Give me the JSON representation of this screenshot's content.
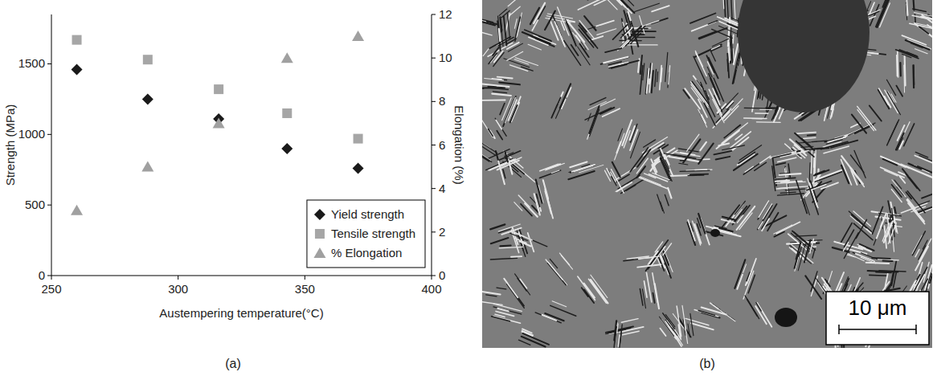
{
  "chart_data": {
    "type": "scatter",
    "x_label": "Austempering temperature(°C)",
    "y_label": "Strength (MPa)",
    "y2_label": "Elongation (%)",
    "x": [
      260,
      288,
      316,
      343,
      371
    ],
    "xlim": [
      250,
      400
    ],
    "xticks": [
      250,
      300,
      350,
      400
    ],
    "ylim": [
      0,
      1850
    ],
    "yticks": [
      0,
      500,
      1000,
      1500
    ],
    "y2lim": [
      0,
      12
    ],
    "y2ticks": [
      0,
      2,
      4,
      6,
      8,
      10,
      12
    ],
    "grid": false,
    "legend": "lower right",
    "series": [
      {
        "name": "Yield strength",
        "color": "#1a1a1a",
        "marker": "diamond",
        "values": [
          1460,
          1250,
          1110,
          900,
          760
        ]
      },
      {
        "name": "Tensile strength",
        "color": "#a6a6a6",
        "marker": "square",
        "values": [
          1670,
          1530,
          1320,
          1150,
          970
        ]
      },
      {
        "name": "% Elongation",
        "color": "#a0a0a0",
        "marker": "triangle",
        "axis": "y2",
        "values": [
          3,
          5,
          7,
          10,
          11
        ]
      }
    ]
  },
  "panels": [
    {
      "label": "(a)"
    },
    {
      "label": "(b)",
      "scale_bar": "10 μm"
    }
  ]
}
